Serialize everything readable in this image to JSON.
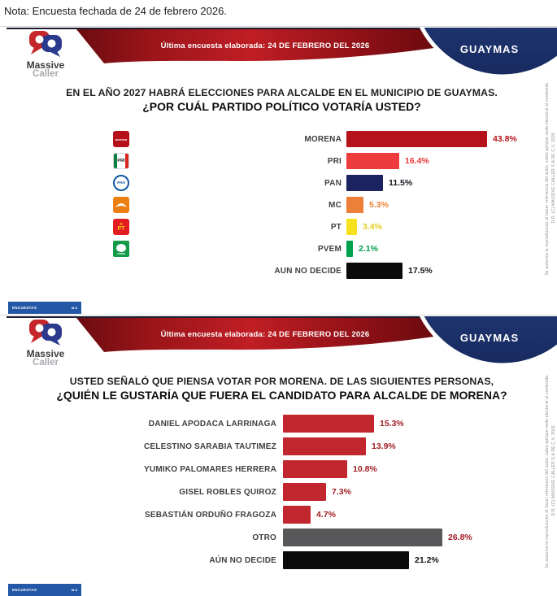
{
  "note": "Nota: Encuesta fechada de 24 de febrero 2026.",
  "brand": {
    "logo_top": "Massive",
    "logo_bottom": "Caller"
  },
  "header": {
    "ribbon_text": "Última encuesta elaborada: 24 DE FEBRERO DEL 2026",
    "city": "GUAYMAS"
  },
  "side_watermark": {
    "rights": "D.R. (C) MASSIVE CALLER S.A DE C.V. 2026",
    "notice": "Se autoriza la reproducción al hacer referencia del autor, salvo aplique veda electoral al contenido."
  },
  "footer_badge": {
    "left": "ENCUESTAS",
    "right": "M.S"
  },
  "colors": {
    "ribbon_red": "#bf1e24",
    "city_navy": "#1f3570",
    "badge_blue": "#2458a6",
    "morena_red": "#b5121b",
    "pri_red": "#ee3b3e",
    "pan_navy": "#1b2460",
    "mc_orange": "#ec8038",
    "pt_yellow": "#f6e11d",
    "pvem_green": "#00a14b",
    "undecided_black": "#0b0b0b",
    "candidate_red": "#c2262e",
    "otro_gray": "#58585a"
  },
  "chart_data": [
    {
      "type": "bar",
      "orientation": "horizontal",
      "title_line1": "EN EL AÑO 2027 HABRÁ ELECCIONES PARA ALCALDE EN EL MUNICIPIO DE GUAYMAS.",
      "title_line2": "¿POR CUÁL PARTIDO POLÍTICO VOTARÍA USTED?",
      "categories": [
        "MORENA",
        "PRI",
        "PAN",
        "MC",
        "PT",
        "PVEM",
        "AUN NO DECIDE"
      ],
      "values": [
        43.8,
        16.4,
        11.5,
        5.3,
        3.4,
        2.1,
        17.5
      ],
      "value_labels": [
        "43.8%",
        "16.4%",
        "11.5%",
        "5.3%",
        "3.4%",
        "2.1%",
        "17.5%"
      ],
      "icons": [
        "morena",
        "pri",
        "pan",
        "mc",
        "pt",
        "pvem",
        null
      ],
      "bar_colors": [
        "#b5121b",
        "#ee3b3e",
        "#1b2460",
        "#ec8038",
        "#f6e11d",
        "#00a14b",
        "#0b0b0b"
      ],
      "value_colors": [
        "#b5121b",
        "#e8393d",
        "#15151f",
        "#e8823a",
        "#e3cf1e",
        "#00a14b",
        "#111111"
      ],
      "axis_visible": false,
      "xlim": [
        0,
        47
      ]
    },
    {
      "type": "bar",
      "orientation": "horizontal",
      "title_line1": "USTED SEÑALÓ QUE PIENSA VOTAR POR MORENA. DE LAS SIGUIENTES PERSONAS,",
      "title_line2": "¿QUIÉN LE GUSTARÍA QUE FUERA EL CANDIDATO PARA ALCALDE DE MORENA?",
      "categories": [
        "DANIEL APODACA LARRINAGA",
        "CELESTINO SARABIA TAUTIMEZ",
        "YUMIKO PALOMARES HERRERA",
        "GISEL ROBLES QUIROZ",
        "SEBASTIÁN ORDUÑO FRAGOZA",
        "OTRO",
        "AÚN NO DECIDE"
      ],
      "values": [
        15.3,
        13.9,
        10.8,
        7.3,
        4.7,
        26.8,
        21.2
      ],
      "value_labels": [
        "15.3%",
        "13.9%",
        "10.8%",
        "7.3%",
        "4.7%",
        "26.8%",
        "21.2%"
      ],
      "icons": [
        null,
        null,
        null,
        null,
        null,
        null,
        null
      ],
      "bar_colors": [
        "#c2262e",
        "#c2262e",
        "#c2262e",
        "#c2262e",
        "#c2262e",
        "#58585a",
        "#0b0b0b"
      ],
      "value_colors": [
        "#a01e24",
        "#a01e24",
        "#a01e24",
        "#a01e24",
        "#a01e24",
        "#a01e24",
        "#111111"
      ],
      "axis_visible": false,
      "xlim": [
        0,
        30
      ]
    }
  ]
}
